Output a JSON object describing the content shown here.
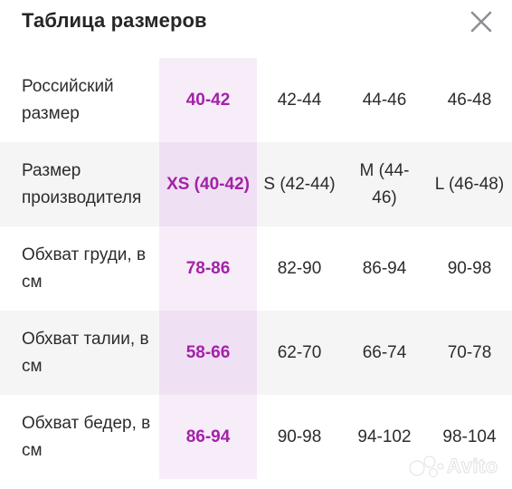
{
  "header": {
    "title": "Таблица размеров",
    "close_icon": "close-icon"
  },
  "table": {
    "selected_column_index": 0,
    "rows": [
      {
        "label": "Российский размер",
        "values": [
          "40-42",
          "42-44",
          "44-46",
          "46-48"
        ]
      },
      {
        "label": "Размер производителя",
        "values": [
          "XS (40-42)",
          "S (42-44)",
          "M (44-46)",
          "L (46-48)"
        ]
      },
      {
        "label": "Обхват груди, в см",
        "values": [
          "78-86",
          "82-90",
          "86-94",
          "90-98"
        ]
      },
      {
        "label": "Обхват талии, в см",
        "values": [
          "58-66",
          "62-70",
          "66-74",
          "70-78"
        ]
      },
      {
        "label": "Обхват бедер, в см",
        "values": [
          "86-94",
          "90-98",
          "94-102",
          "98-104"
        ]
      }
    ]
  },
  "colors": {
    "accent": "#a322a8",
    "selected_column_bg": "#f7edf9",
    "alt_row_bg": "#f5f5f6",
    "text": "#2c2c2c"
  },
  "watermark": {
    "text": "Avito"
  }
}
